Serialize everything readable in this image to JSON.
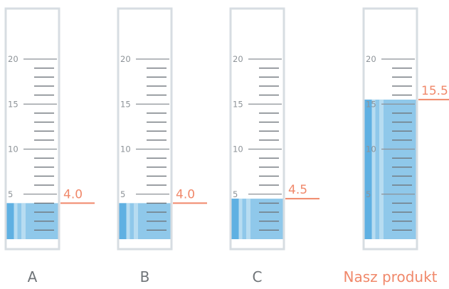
{
  "colors": {
    "liquid": "#8fc8ea",
    "liquid_dark": "#5fb0e2",
    "liquid_light": "#b7dcf1",
    "accent": "#f0886a",
    "tick": "#6f757b",
    "scale_text": "#8d9398",
    "label_text": "#6f7478"
  },
  "scale": {
    "min": 0,
    "max": 20,
    "labels": [
      "5",
      "10",
      "15",
      "20"
    ]
  },
  "cylinders": [
    {
      "id": "a",
      "label": "A",
      "level": 4.0,
      "value_text": "4.0",
      "highlight": false
    },
    {
      "id": "b",
      "label": "B",
      "level": 4.0,
      "value_text": "4.0",
      "highlight": false
    },
    {
      "id": "c",
      "label": "C",
      "level": 4.5,
      "value_text": "4.5",
      "highlight": false
    },
    {
      "id": "d",
      "label": "Nasz produkt",
      "level": 15.5,
      "value_text": "15.5",
      "highlight": true
    }
  ]
}
